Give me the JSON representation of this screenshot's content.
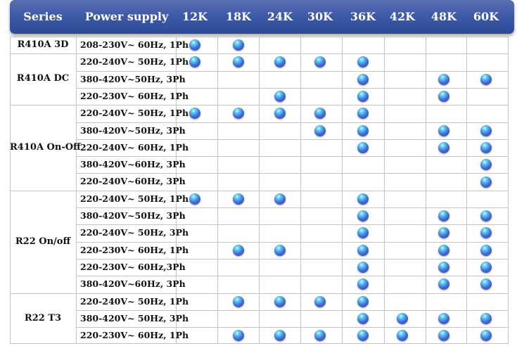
{
  "header": {
    "series": "Series",
    "power_supply": "Power supply",
    "capacities": [
      "12K",
      "18K",
      "24K",
      "30K",
      "36K",
      "42K",
      "48K",
      "60K"
    ]
  },
  "groups": [
    {
      "name": "R410A  3D",
      "rows": [
        {
          "power": "208-230V~ 60Hz, 1Ph",
          "availability": [
            1,
            1,
            0,
            0,
            0,
            0,
            0,
            0
          ]
        }
      ]
    },
    {
      "name": "R410A  DC",
      "rows": [
        {
          "power": "220-240V~ 50Hz, 1Ph",
          "availability": [
            1,
            1,
            1,
            1,
            1,
            0,
            0,
            0
          ]
        },
        {
          "power": "380-420V~50Hz, 3Ph",
          "availability": [
            0,
            0,
            0,
            0,
            1,
            0,
            1,
            1
          ]
        },
        {
          "power": "220-230V~ 60Hz, 1Ph",
          "availability": [
            0,
            0,
            1,
            0,
            1,
            0,
            1,
            0
          ]
        }
      ]
    },
    {
      "name": "R410A  On-Off",
      "rows": [
        {
          "power": "220-240V~ 50Hz, 1Ph",
          "availability": [
            1,
            1,
            1,
            1,
            1,
            0,
            0,
            0
          ]
        },
        {
          "power": "380-420V~50Hz, 3Ph",
          "availability": [
            0,
            0,
            0,
            1,
            1,
            0,
            1,
            1
          ]
        },
        {
          "power": "220-240V~ 60Hz, 1Ph",
          "availability": [
            0,
            0,
            0,
            0,
            1,
            0,
            1,
            1
          ]
        },
        {
          "power": "380-420V~60Hz, 3Ph",
          "availability": [
            0,
            0,
            0,
            0,
            0,
            0,
            0,
            1
          ]
        },
        {
          "power": "220-240V~60Hz, 3Ph",
          "availability": [
            0,
            0,
            0,
            0,
            0,
            0,
            0,
            1
          ]
        }
      ]
    },
    {
      "name": "R22 On/off",
      "rows": [
        {
          "power": "220-240V~ 50Hz, 1Ph",
          "availability": [
            1,
            1,
            1,
            0,
            1,
            0,
            0,
            0
          ]
        },
        {
          "power": "380-420V~50Hz, 3Ph",
          "availability": [
            0,
            0,
            0,
            0,
            1,
            0,
            1,
            1
          ]
        },
        {
          "power": "220-240V~ 50Hz, 3Ph",
          "availability": [
            0,
            0,
            0,
            0,
            1,
            0,
            1,
            1
          ]
        },
        {
          "power": "220-230V~ 60Hz, 1Ph",
          "availability": [
            0,
            1,
            1,
            0,
            1,
            0,
            1,
            1
          ]
        },
        {
          "power": "220-230V~ 60Hz,3Ph",
          "availability": [
            0,
            0,
            0,
            0,
            1,
            0,
            1,
            1
          ]
        },
        {
          "power": "380-420V~60Hz, 3Ph",
          "availability": [
            0,
            0,
            0,
            0,
            1,
            0,
            1,
            1
          ]
        }
      ]
    },
    {
      "name": "R22 T3",
      "rows": [
        {
          "power": "220-240V~ 50Hz, 1Ph",
          "availability": [
            0,
            1,
            1,
            1,
            1,
            0,
            0,
            0
          ]
        },
        {
          "power": "380-420V~ 50Hz, 3Ph",
          "availability": [
            0,
            0,
            0,
            0,
            1,
            1,
            1,
            1
          ]
        },
        {
          "power": "220-230V~ 60Hz, 1Ph",
          "availability": [
            0,
            1,
            1,
            1,
            1,
            1,
            1,
            1
          ]
        }
      ]
    }
  ],
  "colors": {
    "header": "#3e5aa8",
    "dot": "#3b6fd6",
    "grid": "#c4c4c4"
  }
}
